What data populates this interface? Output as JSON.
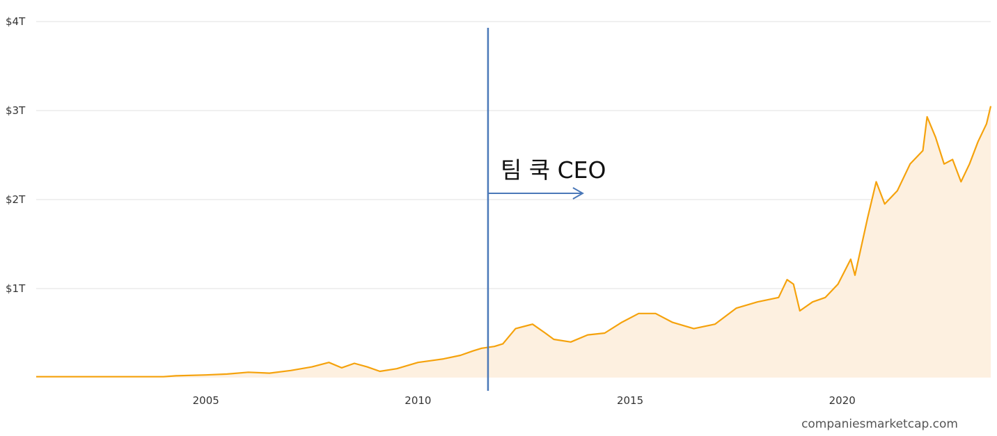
{
  "chart_data": {
    "type": "area",
    "title": "",
    "xlabel": "",
    "ylabel": "",
    "x_range": [
      2001.0,
      2023.5
    ],
    "ylim": [
      0,
      4
    ],
    "y_ticks": [
      {
        "value": 1,
        "label": "$1T"
      },
      {
        "value": 2,
        "label": "$2T"
      },
      {
        "value": 3,
        "label": "$3T"
      },
      {
        "value": 4,
        "label": "$4T"
      }
    ],
    "x_ticks": [
      {
        "value": 2005,
        "label": "2005"
      },
      {
        "value": 2010,
        "label": "2010"
      },
      {
        "value": 2015,
        "label": "2015"
      },
      {
        "value": 2020,
        "label": "2020"
      }
    ],
    "grid": true,
    "colors": {
      "line": "#f5a20c",
      "fill": "#fdf0e0",
      "grid": "#e0e0e0",
      "annotation": "#4a78b8"
    },
    "series": [
      {
        "values": [
          [
            2001.0,
            0.01
          ],
          [
            2003.0,
            0.01
          ],
          [
            2004.0,
            0.01
          ],
          [
            2004.3,
            0.02
          ],
          [
            2005.0,
            0.03
          ],
          [
            2005.5,
            0.04
          ],
          [
            2006.0,
            0.06
          ],
          [
            2006.5,
            0.05
          ],
          [
            2007.0,
            0.08
          ],
          [
            2007.5,
            0.12
          ],
          [
            2007.9,
            0.17
          ],
          [
            2008.2,
            0.11
          ],
          [
            2008.5,
            0.16
          ],
          [
            2008.8,
            0.12
          ],
          [
            2009.1,
            0.07
          ],
          [
            2009.5,
            0.1
          ],
          [
            2010.0,
            0.17
          ],
          [
            2010.3,
            0.19
          ],
          [
            2010.6,
            0.21
          ],
          [
            2011.0,
            0.25
          ],
          [
            2011.3,
            0.3
          ],
          [
            2011.5,
            0.33
          ],
          [
            2011.8,
            0.35
          ],
          [
            2012.0,
            0.38
          ],
          [
            2012.3,
            0.55
          ],
          [
            2012.7,
            0.6
          ],
          [
            2013.0,
            0.5
          ],
          [
            2013.2,
            0.43
          ],
          [
            2013.6,
            0.4
          ],
          [
            2014.0,
            0.48
          ],
          [
            2014.4,
            0.5
          ],
          [
            2014.8,
            0.62
          ],
          [
            2015.2,
            0.72
          ],
          [
            2015.6,
            0.72
          ],
          [
            2016.0,
            0.62
          ],
          [
            2016.5,
            0.55
          ],
          [
            2017.0,
            0.6
          ],
          [
            2017.5,
            0.78
          ],
          [
            2018.0,
            0.85
          ],
          [
            2018.5,
            0.9
          ],
          [
            2018.7,
            1.1
          ],
          [
            2018.85,
            1.05
          ],
          [
            2019.0,
            0.75
          ],
          [
            2019.3,
            0.85
          ],
          [
            2019.6,
            0.9
          ],
          [
            2019.9,
            1.05
          ],
          [
            2020.2,
            1.33
          ],
          [
            2020.3,
            1.15
          ],
          [
            2020.6,
            1.8
          ],
          [
            2020.8,
            2.2
          ],
          [
            2021.0,
            1.95
          ],
          [
            2021.3,
            2.1
          ],
          [
            2021.6,
            2.4
          ],
          [
            2021.9,
            2.55
          ],
          [
            2022.0,
            2.93
          ],
          [
            2022.2,
            2.7
          ],
          [
            2022.4,
            2.4
          ],
          [
            2022.6,
            2.45
          ],
          [
            2022.8,
            2.2
          ],
          [
            2023.0,
            2.4
          ],
          [
            2023.2,
            2.65
          ],
          [
            2023.4,
            2.85
          ],
          [
            2023.5,
            3.05
          ]
        ]
      }
    ],
    "annotations": [
      {
        "x": 2011.65,
        "label": "팀 쿡 CEO",
        "arrow": "right"
      }
    ]
  },
  "footer": {
    "credit": "companiesmarketcap.com"
  }
}
